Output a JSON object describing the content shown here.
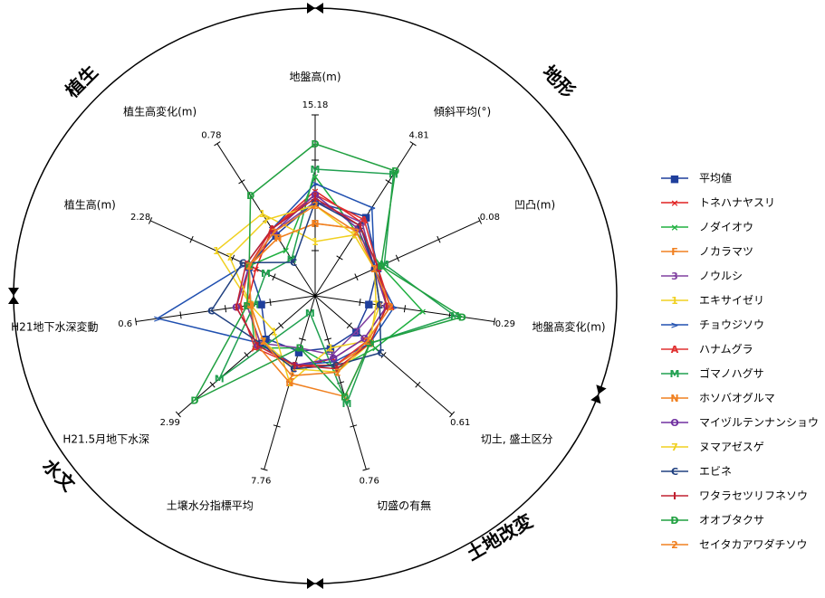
{
  "chart_data": {
    "type": "radar",
    "axes": [
      {
        "label": "地盤高(m)",
        "max": "15.18"
      },
      {
        "label": "傾斜平均(°)",
        "max": "4.81"
      },
      {
        "label": "凹凸(m)",
        "max": "0.08"
      },
      {
        "label": "地盤高変化(m)",
        "max": "0.29"
      },
      {
        "label": "切土, 盛土区分",
        "max": "0.61"
      },
      {
        "label": "切盛の有無",
        "max": "0.76"
      },
      {
        "label": "土壌水分指標平均",
        "max": "7.76"
      },
      {
        "label": "H21.5月地下水深",
        "max": "2.99"
      },
      {
        "label": "H21地下水深変動",
        "max": "0.6"
      },
      {
        "label": "植生高(m)",
        "max": "2.28"
      },
      {
        "label": "植生高変化(m)",
        "max": "0.78"
      }
    ],
    "sections": [
      {
        "label": "植生"
      },
      {
        "label": "地形"
      },
      {
        "label": "土地改変"
      },
      {
        "label": "水文"
      }
    ],
    "series": [
      {
        "name": "平均値",
        "marker": "■",
        "color": "#1f3f9c",
        "values": [
          0.52,
          0.52,
          0.38,
          0.3,
          0.3,
          0.3,
          0.32,
          0.36,
          0.3,
          0.4,
          0.4
        ]
      },
      {
        "name": "トネハナヤスリ",
        "marker": "×",
        "color": "#e02020",
        "values": [
          0.58,
          0.48,
          0.36,
          0.4,
          0.36,
          0.36,
          0.42,
          0.4,
          0.38,
          0.36,
          0.44
        ]
      },
      {
        "name": "ノダイオウ",
        "marker": "×",
        "color": "#20b040",
        "values": [
          0.66,
          0.42,
          0.4,
          0.6,
          0.44,
          0.42,
          0.3,
          0.44,
          0.36,
          0.4,
          0.3
        ]
      },
      {
        "name": "ノカラマツ",
        "marker": "F",
        "color": "#f08020",
        "values": [
          0.4,
          0.44,
          0.36,
          0.4,
          0.4,
          0.4,
          0.4,
          0.4,
          0.38,
          0.4,
          0.38
        ]
      },
      {
        "name": "ノウルシ",
        "marker": "3",
        "color": "#8040a0",
        "values": [
          0.52,
          0.48,
          0.36,
          0.36,
          0.3,
          0.34,
          0.3,
          0.4,
          0.38,
          0.4,
          0.42
        ]
      },
      {
        "name": "エキサイゼリ",
        "marker": "1",
        "color": "#f0d020",
        "values": [
          0.3,
          0.4,
          0.36,
          0.36,
          0.38,
          0.3,
          0.5,
          0.3,
          0.36,
          0.6,
          0.54
        ]
      },
      {
        "name": "チョウジソウ",
        "marker": ">",
        "color": "#2050b0",
        "values": [
          0.62,
          0.58,
          0.36,
          0.44,
          0.4,
          0.38,
          0.4,
          0.4,
          0.88,
          0.42,
          0.44
        ]
      },
      {
        "name": "ハナムグラ",
        "marker": "A",
        "color": "#e03030",
        "values": [
          0.56,
          0.5,
          0.38,
          0.42,
          0.38,
          0.4,
          0.4,
          0.44,
          0.42,
          0.4,
          0.44
        ]
      },
      {
        "name": "ゴマノハグサ",
        "marker": "M",
        "color": "#20a050",
        "values": [
          0.7,
          0.8,
          0.42,
          0.78,
          0.4,
          0.62,
          0.1,
          0.7,
          0.34,
          0.3,
          0.24
        ]
      },
      {
        "name": "ホソバオグルマ",
        "marker": "N",
        "color": "#f08020",
        "values": [
          0.4,
          0.44,
          0.36,
          0.4,
          0.4,
          0.58,
          0.5,
          0.42,
          0.36,
          0.4,
          0.38
        ]
      },
      {
        "name": "マイヅルテンナンショウ",
        "marker": "O",
        "color": "#7030a0",
        "values": [
          0.56,
          0.44,
          0.36,
          0.4,
          0.36,
          0.36,
          0.4,
          0.42,
          0.44,
          0.4,
          0.42
        ]
      },
      {
        "name": "ヌマアゼスゲ",
        "marker": "7",
        "color": "#f0d020",
        "values": [
          0.5,
          0.4,
          0.36,
          0.34,
          0.4,
          0.44,
          0.42,
          0.38,
          0.36,
          0.52,
          0.5
        ]
      },
      {
        "name": "エビネ",
        "marker": "C",
        "color": "#204080",
        "values": [
          0.52,
          0.46,
          0.36,
          0.36,
          0.48,
          0.4,
          0.42,
          0.4,
          0.58,
          0.44,
          0.22
        ]
      },
      {
        "name": "ワタラセツリフネソウ",
        "marker": "I",
        "color": "#c02030",
        "values": [
          0.54,
          0.46,
          0.38,
          0.4,
          0.4,
          0.42,
          0.4,
          0.42,
          0.44,
          0.42,
          0.44
        ]
      },
      {
        "name": "オオブタクサ",
        "marker": "D",
        "color": "#20a040",
        "values": [
          0.84,
          0.82,
          0.4,
          0.82,
          0.4,
          0.58,
          0.3,
          0.88,
          0.38,
          0.4,
          0.66
        ]
      },
      {
        "name": "セイタカアワダチソウ",
        "marker": "2",
        "color": "#f08020",
        "values": [
          0.5,
          0.42,
          0.36,
          0.42,
          0.38,
          0.44,
          0.46,
          0.38,
          0.36,
          0.4,
          0.42
        ]
      }
    ]
  }
}
